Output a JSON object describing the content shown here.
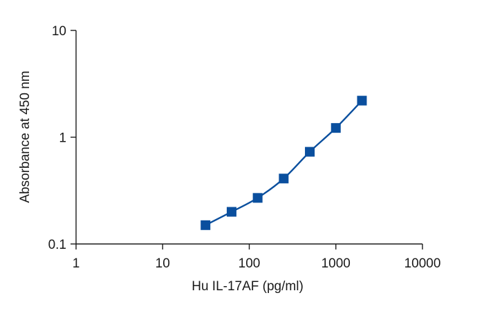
{
  "chart_data": {
    "type": "scatter",
    "title": "",
    "xlabel": "Hu IL-17AF (pg/ml)",
    "ylabel": "Absorbance at 450 nm",
    "x_scale": "log",
    "y_scale": "log",
    "xlim": [
      1,
      10000
    ],
    "ylim": [
      0.1,
      10
    ],
    "x_ticks": [
      1,
      10,
      100,
      1000,
      10000
    ],
    "x_tick_labels": [
      "1",
      "10",
      "100",
      "1000",
      "10000"
    ],
    "y_ticks": [
      0.1,
      1,
      10
    ],
    "y_tick_labels": [
      "0.1",
      "1",
      "10"
    ],
    "grid": false,
    "legend": "none",
    "series": [
      {
        "x": [
          31.25,
          62.5,
          125,
          250,
          500,
          1000,
          2000
        ],
        "y": [
          0.15,
          0.2,
          0.27,
          0.41,
          0.73,
          1.22,
          2.2
        ],
        "marker": "square",
        "color": "#0a4f9e",
        "fit_curve": true
      }
    ]
  }
}
